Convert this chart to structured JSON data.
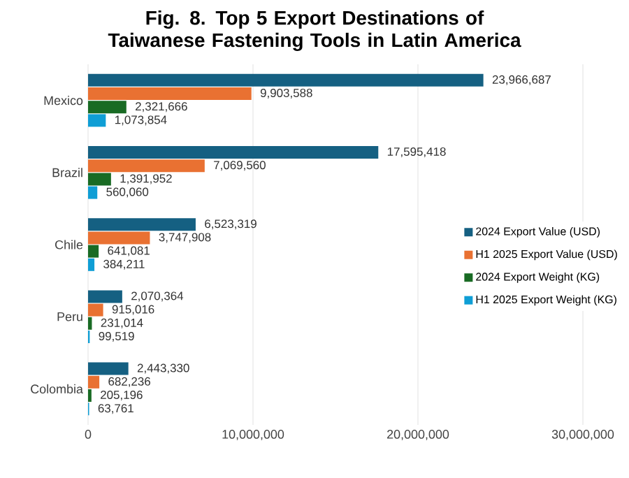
{
  "chart_data": {
    "type": "bar",
    "orientation": "horizontal",
    "title": "Fig. 8. Top 5 Export Destinations of Taiwanese Fastening Tools in Latin America",
    "categories": [
      "Mexico",
      "Brazil",
      "Chile",
      "Peru",
      "Colombia"
    ],
    "series": [
      {
        "name": "2024 Export Value (USD)",
        "color": "#156082",
        "values": [
          23966687,
          17595418,
          6523319,
          2070364,
          2443330
        ],
        "value_labels": [
          "23,966,687",
          "17,595,418",
          "6,523,319",
          "2,070,364",
          "2,443,330"
        ]
      },
      {
        "name": "H1 2025 Export Value (USD)",
        "color": "#e97132",
        "values": [
          9903588,
          7069560,
          3747908,
          915016,
          682236
        ],
        "value_labels": [
          "9,903,588",
          "7,069,560",
          "3,747,908",
          "915,016",
          "682,236"
        ]
      },
      {
        "name": "2024 Export Weight  (KG)",
        "color": "#196b24",
        "values": [
          2321666,
          1391952,
          641081,
          231014,
          205196
        ],
        "value_labels": [
          "2,321,666",
          "1,391,952",
          "641,081",
          "231,014",
          "205,196"
        ]
      },
      {
        "name": "H1 2025 Export Weight  (KG)",
        "color": "#0f9ed5",
        "values": [
          1073854,
          560060,
          384211,
          99519,
          63761
        ],
        "value_labels": [
          "1,073,854",
          "560,060",
          "384,211",
          "99,519",
          "63,761"
        ]
      }
    ],
    "xlim": [
      0,
      30000000
    ],
    "xticks": [
      0,
      {
        "value": 10000000,
        "label": "10,000,000"
      },
      {
        "value": 20000000,
        "label": "20,000,000"
      },
      {
        "value": 30000000,
        "label": "30,000,000"
      }
    ],
    "grid": "x",
    "legend": "right"
  }
}
